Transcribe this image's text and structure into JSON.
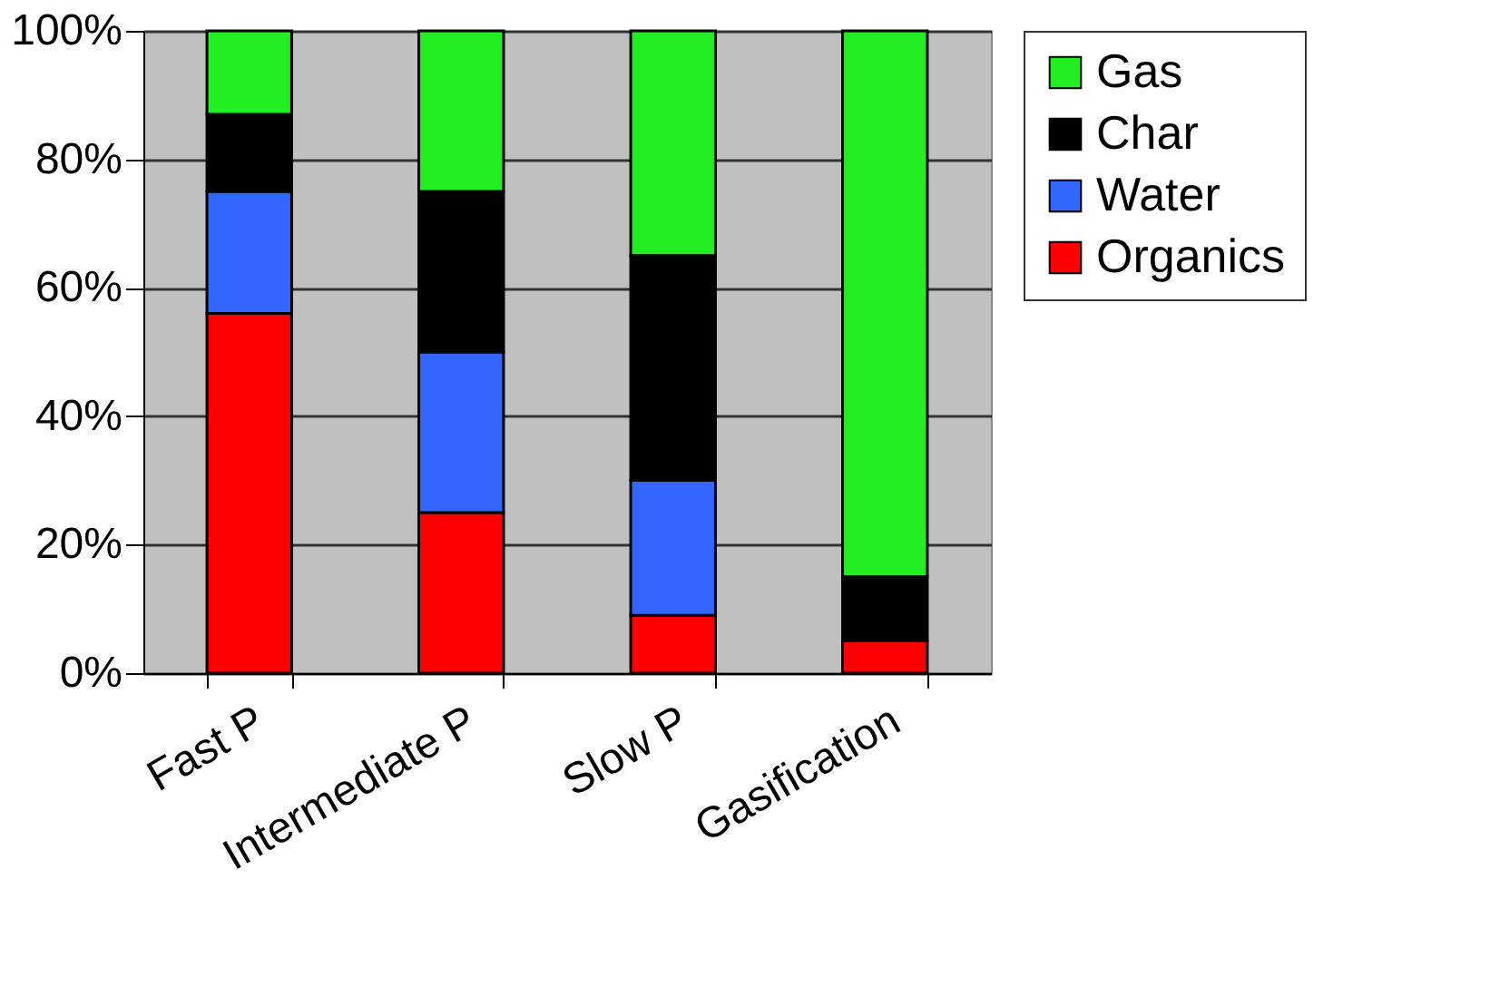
{
  "chart_data": {
    "type": "bar",
    "stacked": true,
    "categories": [
      "Fast P",
      "Intermediate P",
      "Slow P",
      "Gasification"
    ],
    "series": [
      {
        "name": "Organics",
        "color": "#ff0000",
        "values": [
          56,
          25,
          9,
          5
        ]
      },
      {
        "name": "Water",
        "color": "#3366ff",
        "values": [
          19,
          25,
          21,
          0
        ]
      },
      {
        "name": "Char",
        "color": "#000000",
        "values": [
          12,
          25,
          35,
          10
        ]
      },
      {
        "name": "Gas",
        "color": "#22ee22",
        "values": [
          13,
          25,
          35,
          85
        ]
      }
    ],
    "ylim": [
      0,
      100
    ],
    "yticks": [
      {
        "value": 0,
        "label": "0%"
      },
      {
        "value": 20,
        "label": "20%"
      },
      {
        "value": 40,
        "label": "40%"
      },
      {
        "value": 60,
        "label": "60%"
      },
      {
        "value": 80,
        "label": "80%"
      },
      {
        "value": 100,
        "label": "100%"
      }
    ],
    "grid": "y",
    "legend": "right"
  }
}
